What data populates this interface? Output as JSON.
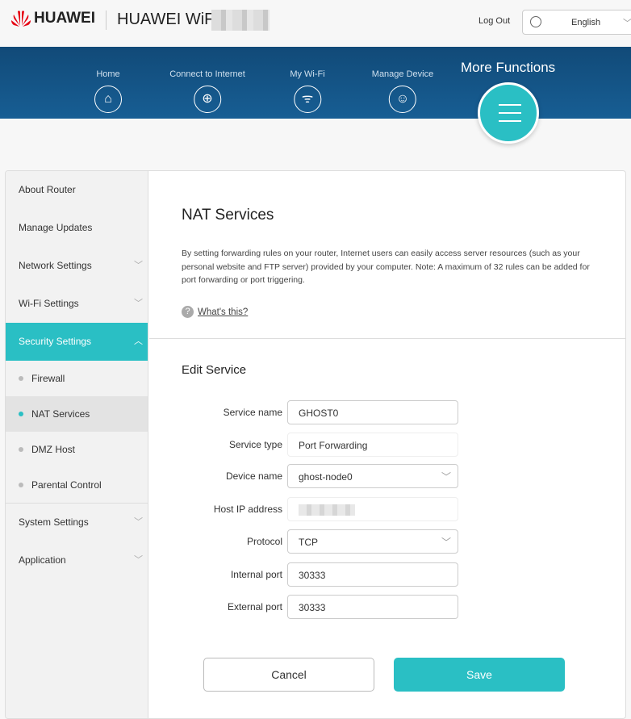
{
  "header": {
    "brand": "HUAWEI",
    "product": "HUAWEI WiFi",
    "logout": "Log Out",
    "language": "English"
  },
  "nav": [
    {
      "label": "Home",
      "icon": "home-icon"
    },
    {
      "label": "Connect to Internet",
      "icon": "globe-icon"
    },
    {
      "label": "My Wi-Fi",
      "icon": "wifi-icon"
    },
    {
      "label": "Manage Device",
      "icon": "user-icon"
    }
  ],
  "more_functions": "More Functions",
  "sidebar": {
    "items": [
      "About Router",
      "Manage Updates",
      "Network Settings",
      "Wi-Fi Settings",
      "Security Settings",
      "System Settings",
      "Application"
    ],
    "sub": [
      "Firewall",
      "NAT Services",
      "DMZ Host",
      "Parental Control"
    ]
  },
  "main": {
    "title": "NAT Services",
    "description": "By setting forwarding rules on your router, Internet users can easily access server resources (such as your personal website and FTP server) provided by your computer. Note: A maximum of 32 rules can be added for port forwarding or port triggering.",
    "whats_this": "What's this?",
    "section": "Edit Service",
    "form": {
      "service_name_label": "Service name",
      "service_name": "GHOST0",
      "service_type_label": "Service type",
      "service_type": "Port Forwarding",
      "device_name_label": "Device name",
      "device_name": "ghost-node0",
      "host_ip_label": "Host IP address",
      "protocol_label": "Protocol",
      "protocol": "TCP",
      "internal_port_label": "Internal port",
      "internal_port": "30333",
      "external_port_label": "External port",
      "external_port": "30333"
    },
    "cancel": "Cancel",
    "save": "Save"
  },
  "colors": {
    "accent": "#2abfc4",
    "banner": "#175a8e",
    "logo": "#e60012"
  }
}
